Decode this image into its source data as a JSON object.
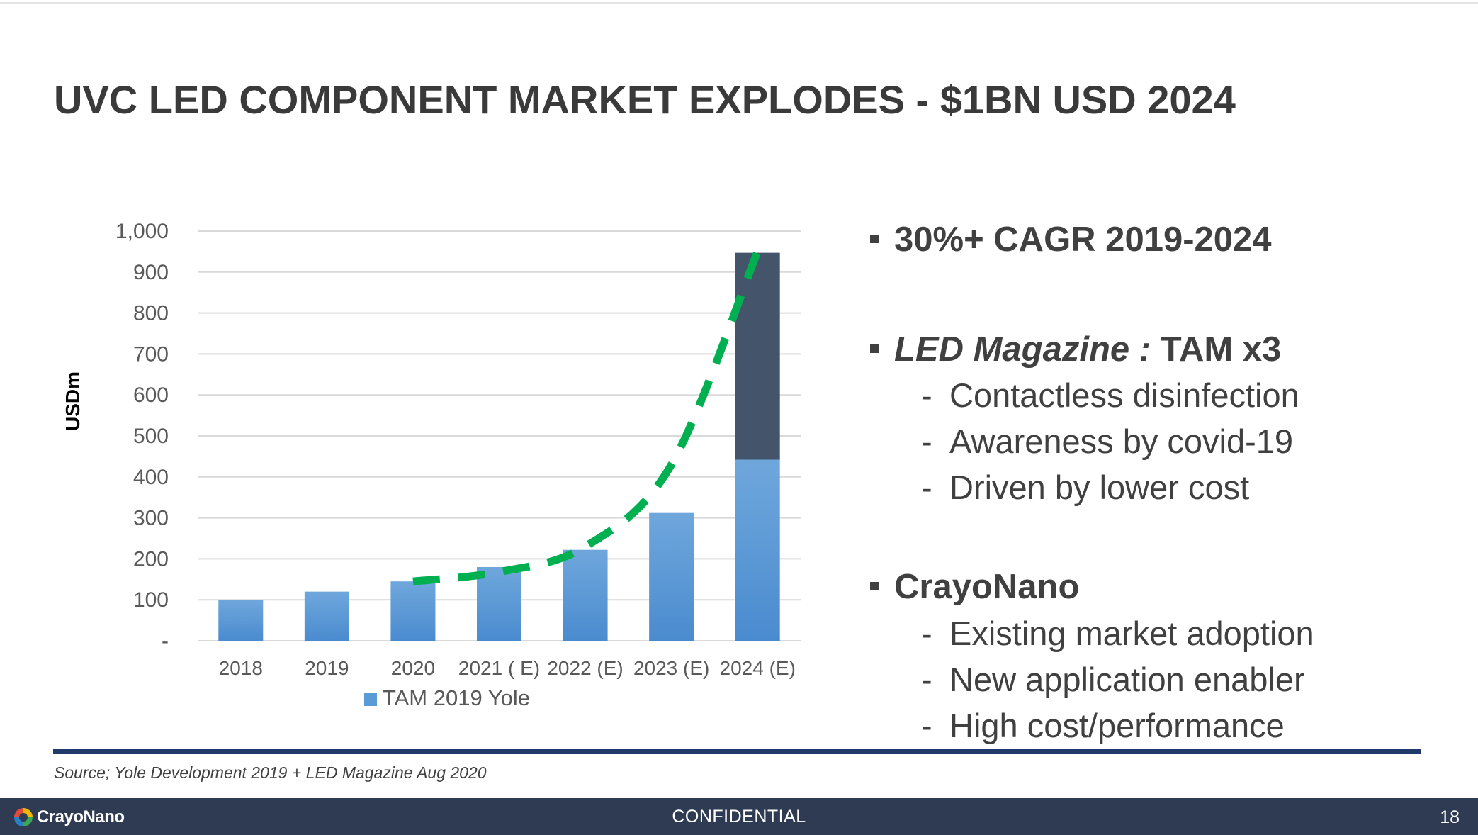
{
  "slide": {
    "title": "UVC LED COMPONENT MARKET EXPLODES - $1BN USD 2024",
    "source": "Source; Yole Development 2019 + LED Magazine Aug 2020",
    "footer": {
      "logo_text": "CrayoNano",
      "confidential": "CONFIDENTIAL",
      "page_number": "18"
    }
  },
  "bullets": [
    {
      "text": "30%+ CAGR 2019-2024",
      "subs": []
    },
    {
      "italic": "LED Magazine :",
      "text": " TAM x3",
      "subs": [
        "Contactless disinfection",
        "Awareness by covid-19",
        "Driven by lower cost"
      ]
    },
    {
      "text": "CrayoNano",
      "subs": [
        "Existing market adoption",
        "New application enabler",
        "High cost/performance"
      ]
    }
  ],
  "chart_data": {
    "type": "bar",
    "stacked": true,
    "categories": [
      "2018",
      "2019",
      "2020",
      "2021 ( E)",
      "2022 (E)",
      "2023 (E)",
      "2024 (E)"
    ],
    "series": [
      {
        "name": "TAM 2019 Yole",
        "values": [
          100,
          120,
          145,
          180,
          222,
          312,
          442
        ],
        "color": "#5b9bd5"
      },
      {
        "values": [
          0,
          0,
          0,
          0,
          0,
          0,
          505
        ],
        "color": "#44546a"
      }
    ],
    "trend_line": {
      "style": "dashed",
      "color": "#00b050",
      "points": [
        [
          2,
          145
        ],
        [
          3,
          168
        ],
        [
          4,
          230
        ],
        [
          5,
          430
        ],
        [
          6,
          950
        ]
      ]
    },
    "ylabel": "USDm",
    "ylim": [
      0,
      1000
    ],
    "yticks": [
      0,
      100,
      200,
      300,
      400,
      500,
      600,
      700,
      800,
      900,
      1000
    ],
    "ytick_labels": [
      "-",
      "100",
      "200",
      "300",
      "400",
      "500",
      "600",
      "700",
      "800",
      "900",
      "1,000"
    ],
    "grid": true,
    "legend_position": "bottom"
  }
}
